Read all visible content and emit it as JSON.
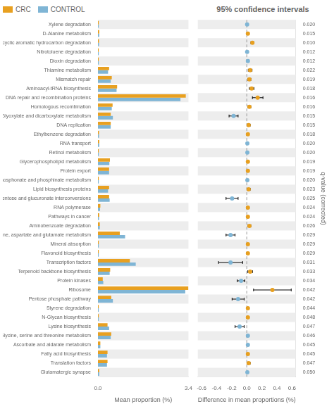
{
  "chart_data": [
    {
      "type": "bar",
      "orientation": "horizontal",
      "categories": [
        "Xylene degradation",
        "D-Alanine metabolism",
        "Polycyclic aromatic hydrocarbon degradation",
        "Nitrotoluene degradation",
        "Dioxin degradation",
        "Thiamine metabolism",
        "Mismatch repair",
        "Aminoacyl-tRNA biosynthesis",
        "DNA repair and recombination proteins",
        "Homologous recombination",
        "Glyoxylate and dicarboxylate metabolism",
        "DNA replication",
        "Ethylbenzene degradation",
        "RNA transport",
        "Retinol metabolism",
        "Glycerophospholipid metabolism",
        "Protein export",
        "Phosphonate and phosphinate metabolism",
        "Lipid biosynthesis proteins",
        "Pentose and glucuronate interconversions",
        "RNA polymerase",
        "Pathways in cancer",
        "Aminobenzoate degradation",
        "Alanine, aspartate and glutamate metabolism",
        "Mineral absorption",
        "Flavonoid biosynthesis",
        "Transcription factors",
        "Terpenoid backbone biosynthesis",
        "Protein kinases",
        "Ribosome",
        "Pentose phosphate pathway",
        "Styrene degradation",
        "N-Glycan biosynthesis",
        "Lysine biosynthesis",
        "Glycine, serine and threonine metabolism",
        "Ascorbate and aldarate metabolism",
        "Fatty acid biosynthesis",
        "Translation factors",
        "Glutamatergic synapse"
      ],
      "series": [
        {
          "name": "CRC",
          "color": "#E8A020",
          "values": [
            0.03,
            0.05,
            0.04,
            0.03,
            0.03,
            0.42,
            0.52,
            0.72,
            3.3,
            0.55,
            0.48,
            0.48,
            0.04,
            0.05,
            0.03,
            0.45,
            0.42,
            0.03,
            0.42,
            0.42,
            0.09,
            0.05,
            0.07,
            0.82,
            0.03,
            0.03,
            1.2,
            0.46,
            0.18,
            3.4,
            0.5,
            0.03,
            0.03,
            0.36,
            0.5,
            0.09,
            0.36,
            0.36,
            0.05
          ]
        },
        {
          "name": "CONTROL",
          "color": "#7FB5D5",
          "values": [
            0.03,
            0.05,
            0.04,
            0.03,
            0.03,
            0.38,
            0.48,
            0.7,
            3.1,
            0.52,
            0.56,
            0.48,
            0.04,
            0.05,
            0.03,
            0.43,
            0.42,
            0.03,
            0.38,
            0.44,
            0.08,
            0.04,
            0.07,
            1.02,
            0.03,
            0.03,
            1.42,
            0.44,
            0.2,
            3.28,
            0.56,
            0.03,
            0.03,
            0.42,
            0.48,
            0.09,
            0.34,
            0.34,
            0.05
          ]
        }
      ],
      "xlabel": "Mean proportion (%)",
      "xlim": [
        0.0,
        3.4
      ],
      "xticks": [
        {
          "value": 0.0,
          "label": "0.0"
        },
        3.4
      ],
      "grid": false,
      "legend": "upper left"
    },
    {
      "type": "forest",
      "title": "95% confidence intervals",
      "categories": [
        "0.020",
        "0.015",
        "0.010",
        "0.012",
        "0.012",
        "0.022",
        "0.019",
        "0.018",
        "0.016",
        "0.016",
        "0.015",
        "0.015",
        "0.018",
        "0.020",
        "0.020",
        "0.019",
        "0.019",
        "0.020",
        "0.023",
        "0.025",
        "0.024",
        "0.024",
        "0.026",
        "0.029",
        "0.029",
        "0.029",
        "0.031",
        "0.033",
        "0.034",
        "0.042",
        "0.042",
        "0.044",
        "0.048",
        "0.047",
        "0.046",
        "0.045",
        "0.045",
        "0.047",
        "0.050"
      ],
      "values": [
        0.005,
        0.015,
        0.075,
        0.005,
        0.015,
        0.045,
        0.035,
        0.065,
        0.145,
        0.035,
        -0.175,
        0.025,
        0.015,
        0.008,
        0.008,
        0.015,
        0.015,
        0.008,
        0.025,
        -0.195,
        0.015,
        0.015,
        0.035,
        -0.215,
        0.015,
        0.015,
        -0.215,
        0.045,
        -0.075,
        0.34,
        -0.115,
        0.015,
        0.015,
        -0.095,
        0.015,
        0.015,
        0.015,
        0.025,
        0.008
      ],
      "ci_lower": [
        0.0,
        0.0,
        0.055,
        -0.005,
        0.0,
        0.02,
        0.015,
        0.035,
        0.075,
        0.015,
        -0.235,
        0.005,
        0.0,
        -0.005,
        -0.005,
        0.005,
        0.0,
        -0.005,
        0.005,
        -0.275,
        0.0,
        0.0,
        0.015,
        -0.275,
        0.0,
        0.0,
        -0.375,
        0.015,
        -0.125,
        0.09,
        -0.195,
        0.0,
        0.0,
        -0.155,
        0.0,
        0.0,
        0.0,
        0.005,
        -0.005
      ],
      "ci_upper": [
        0.01,
        0.03,
        0.095,
        0.015,
        0.03,
        0.07,
        0.055,
        0.095,
        0.215,
        0.055,
        -0.115,
        0.045,
        0.03,
        0.021,
        0.021,
        0.025,
        0.03,
        0.021,
        0.045,
        -0.115,
        0.03,
        0.03,
        0.055,
        -0.155,
        0.03,
        0.03,
        -0.055,
        0.075,
        -0.025,
        0.59,
        -0.035,
        0.03,
        0.03,
        -0.035,
        0.03,
        0.03,
        0.03,
        0.045,
        0.021
      ],
      "colors": [
        "#7FB5D5",
        "#E8A020",
        "#E8A020",
        "#7FB5D5",
        "#7FB5D5",
        "#E8A020",
        "#E8A020",
        "#E8A020",
        "#E8A020",
        "#E8A020",
        "#7FB5D5",
        "#E8A020",
        "#E8A020",
        "#7FB5D5",
        "#7FB5D5",
        "#E8A020",
        "#E8A020",
        "#7FB5D5",
        "#E8A020",
        "#7FB5D5",
        "#E8A020",
        "#E8A020",
        "#E8A020",
        "#7FB5D5",
        "#E8A020",
        "#E8A020",
        "#7FB5D5",
        "#E8A020",
        "#7FB5D5",
        "#E8A020",
        "#7FB5D5",
        "#E8A020",
        "#E8A020",
        "#7FB5D5",
        "#7FB5D5",
        "#7FB5D5",
        "#E8A020",
        "#E8A020",
        "#7FB5D5"
      ],
      "xlabel": "Difference in mean proportions (%)",
      "ylabel": "q-value (corrected)",
      "xlim": [
        -0.65,
        0.65
      ],
      "xticks": [
        -0.6,
        -0.4,
        -0.2,
        {
          "value": 0.0,
          "label": "0.0"
        },
        0.2,
        0.4,
        0.6
      ],
      "vline": 0.0,
      "grid": false
    }
  ]
}
